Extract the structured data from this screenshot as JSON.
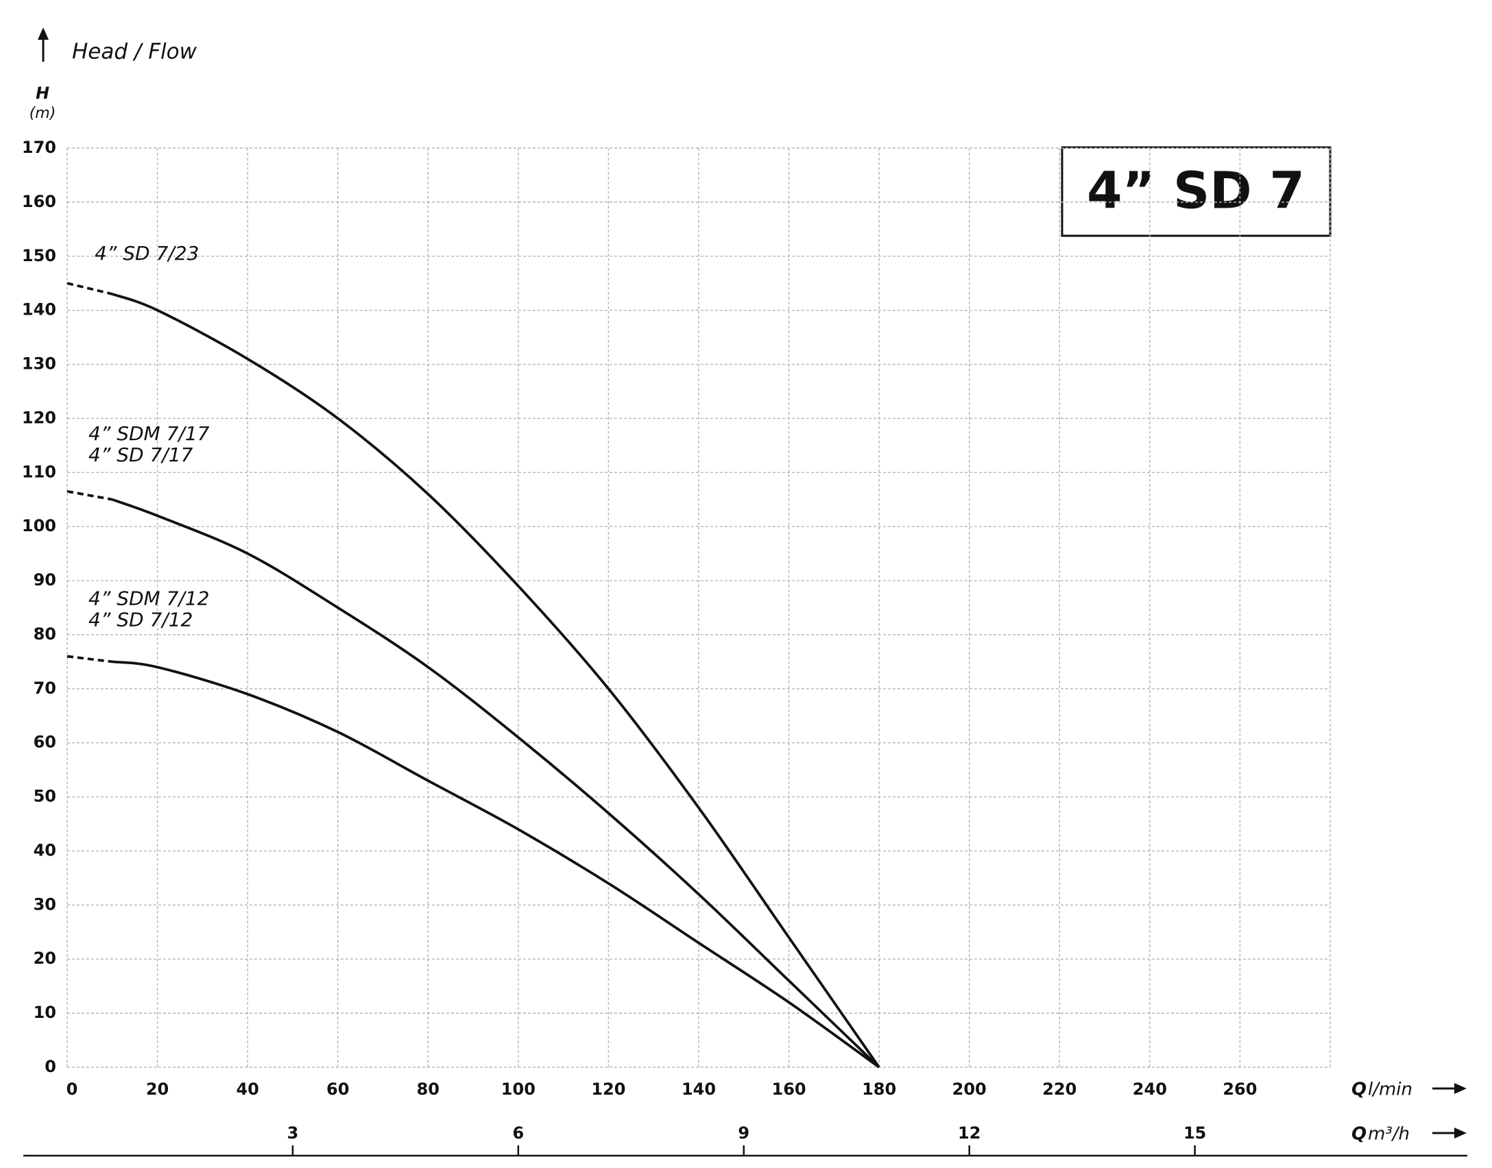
{
  "chart_data": {
    "type": "line",
    "title": "4” SD 7",
    "axis_caption": "Head / Flow",
    "y_label": "H",
    "y_unit": "(m)",
    "x_label": "Q",
    "x_unit": "l/min",
    "x2_label": "Q",
    "x2_unit": "m³/h",
    "x": [
      0,
      10,
      20,
      40,
      60,
      80,
      100,
      120,
      140,
      160,
      180
    ],
    "series": [
      {
        "labels": [
          "4” SD 7/23"
        ],
        "color": "#111111",
        "values": [
          145,
          143,
          140,
          131,
          120,
          106,
          89,
          70,
          48,
          24,
          0
        ]
      },
      {
        "labels": [
          "4” SDM 7/17",
          "4” SD 7/17"
        ],
        "color": "#111111",
        "values": [
          106.5,
          105,
          102,
          95,
          85,
          74,
          61,
          47,
          32,
          16,
          0
        ]
      },
      {
        "labels": [
          "4” SDM 7/12",
          "4” SD 7/12"
        ],
        "color": "#111111",
        "values": [
          76,
          75,
          74,
          69,
          62,
          53,
          44,
          34,
          23,
          12,
          0
        ]
      }
    ],
    "xlim": [
      0,
      280
    ],
    "xticks": [
      0,
      20,
      40,
      60,
      80,
      100,
      120,
      140,
      160,
      180,
      200,
      220,
      240,
      260
    ],
    "x2lim": [
      0,
      16.8
    ],
    "x2ticks": [
      3,
      6,
      9,
      12,
      15
    ],
    "ylim": [
      0,
      170
    ],
    "yticks": [
      0,
      10,
      20,
      30,
      40,
      50,
      60,
      70,
      80,
      90,
      100,
      110,
      120,
      130,
      140,
      150,
      160,
      170
    ],
    "grid": true
  }
}
